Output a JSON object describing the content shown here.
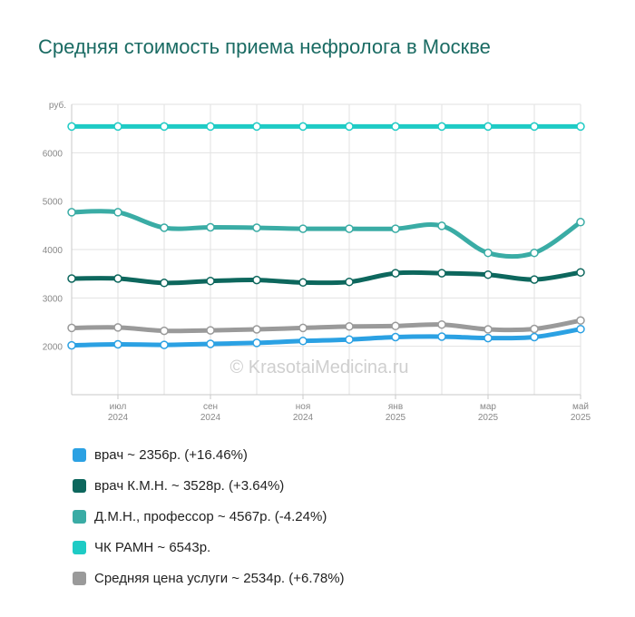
{
  "header": {
    "title": "Средняя стоимость приема нефролога в Москве"
  },
  "watermark": "© KrasotaiMedicina.ru",
  "chart_data": {
    "type": "line",
    "title": "Средняя стоимость приема нефролога в Москве",
    "ylabel": "руб.",
    "ylim": [
      1000,
      7000
    ],
    "y_ticks": [
      2000,
      3000,
      4000,
      5000,
      6000
    ],
    "x": [
      "2024-06",
      "2024-07",
      "2024-08",
      "2024-09",
      "2024-10",
      "2024-11",
      "2024-12",
      "2025-01",
      "2025-02",
      "2025-03",
      "2025-04",
      "2025-05"
    ],
    "x_tick_labels": [
      {
        "x": "2024-07",
        "line1": "июл",
        "line2": "2024"
      },
      {
        "x": "2024-09",
        "line1": "сен",
        "line2": "2024"
      },
      {
        "x": "2024-11",
        "line1": "ноя",
        "line2": "2024"
      },
      {
        "x": "2025-01",
        "line1": "янв",
        "line2": "2025"
      },
      {
        "x": "2025-03",
        "line1": "мар",
        "line2": "2025"
      },
      {
        "x": "2025-05",
        "line1": "май",
        "line2": "2025"
      }
    ],
    "grid": true,
    "legend_position": "bottom",
    "series": [
      {
        "name": "ЧК РАМН",
        "color": "#1ecbc5",
        "values": [
          6543,
          6543,
          6543,
          6543,
          6543,
          6543,
          6543,
          6543,
          6543,
          6543,
          6543,
          6543
        ]
      },
      {
        "name": "Д.М.Н., профессор",
        "color": "#3aaca5",
        "values": [
          4770,
          4770,
          4450,
          4460,
          4450,
          4430,
          4430,
          4430,
          4490,
          3930,
          3930,
          4567
        ]
      },
      {
        "name": "врач К.М.Н.",
        "color": "#0d675d",
        "values": [
          3400,
          3400,
          3310,
          3350,
          3370,
          3320,
          3330,
          3510,
          3510,
          3480,
          3380,
          3528
        ]
      },
      {
        "name": "Средняя цена услуги",
        "color": "#9a9a9a",
        "values": [
          2380,
          2390,
          2320,
          2330,
          2350,
          2380,
          2410,
          2420,
          2450,
          2350,
          2360,
          2534
        ]
      },
      {
        "name": "врач",
        "color": "#2ba1e3",
        "values": [
          2020,
          2040,
          2030,
          2050,
          2070,
          2110,
          2140,
          2190,
          2200,
          2170,
          2190,
          2356
        ]
      }
    ]
  },
  "legend": {
    "items": [
      {
        "color": "#2ba1e3",
        "label": "врач ~ 2356р. (+16.46%)"
      },
      {
        "color": "#0d675d",
        "label": "врач К.М.Н. ~ 3528р. (+3.64%)"
      },
      {
        "color": "#3aaca5",
        "label": "Д.М.Н., профессор ~ 4567р. (-4.24%)"
      },
      {
        "color": "#1ecbc5",
        "label": "ЧК РАМН ~ 6543р."
      },
      {
        "color": "#9a9a9a",
        "label": "Средняя цена услуги ~ 2534р. (+6.78%)"
      }
    ]
  }
}
